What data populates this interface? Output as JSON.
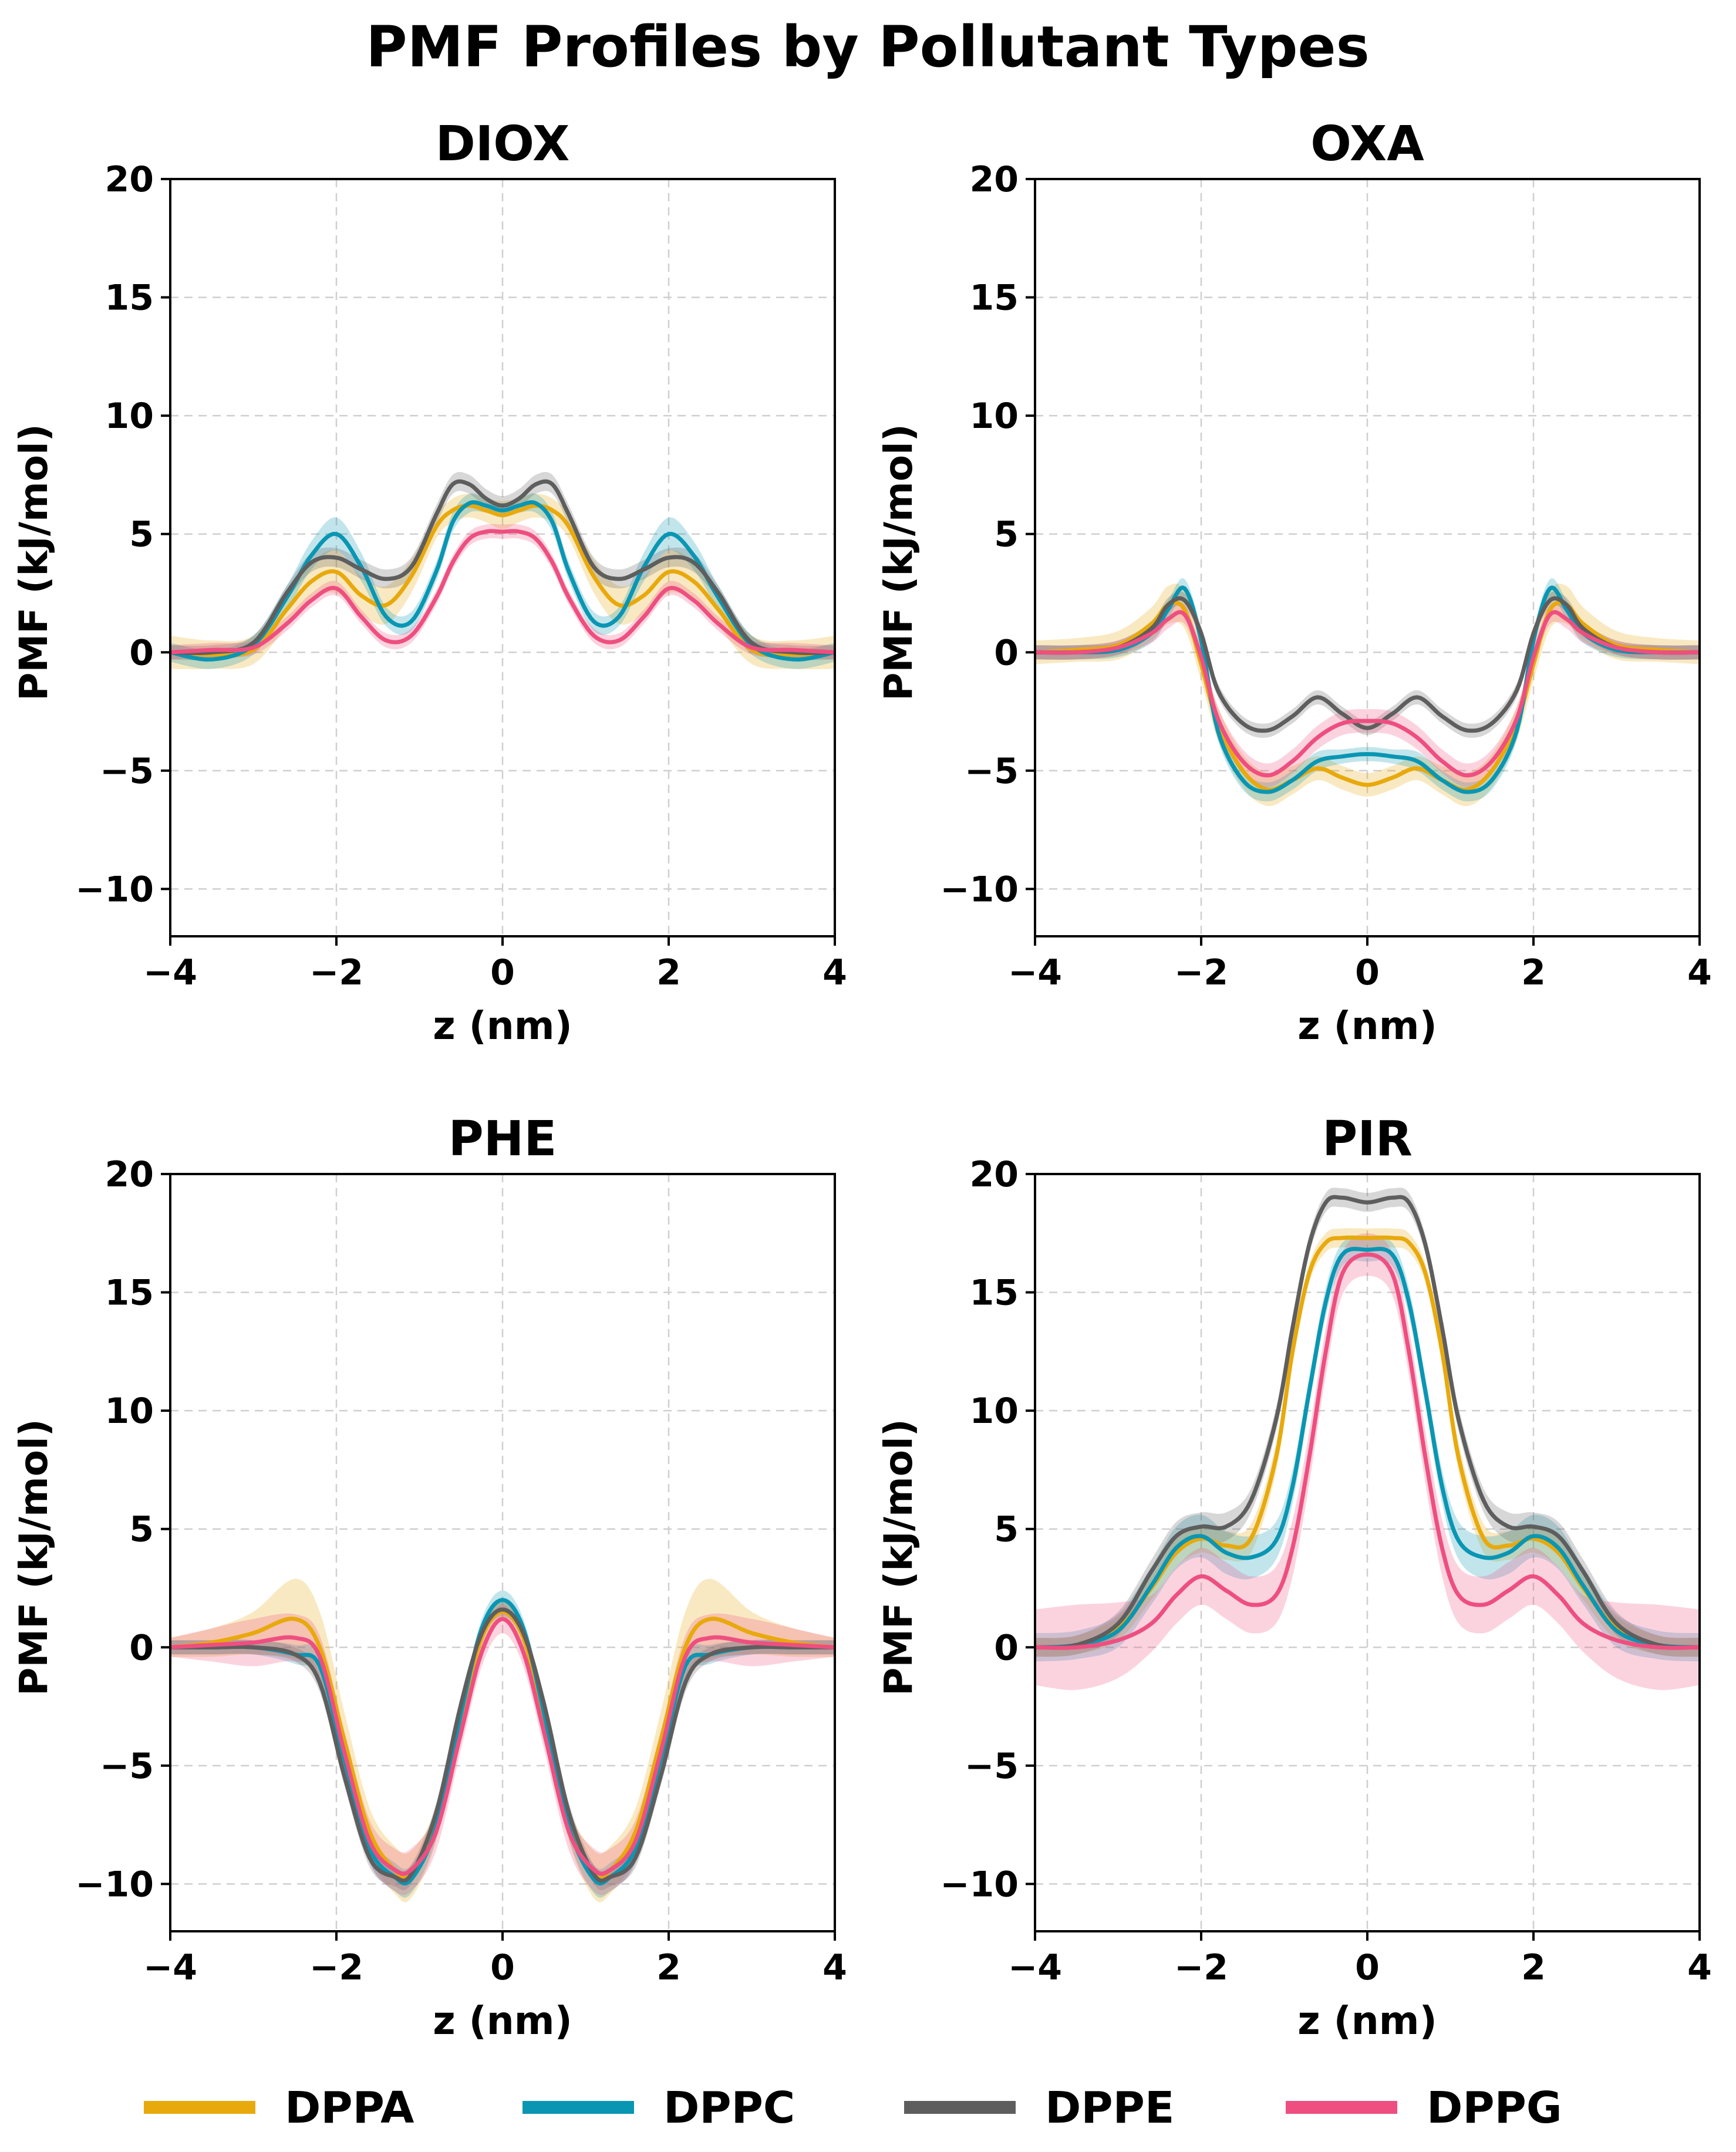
{
  "title": "PMF Profiles by Pollutant Types",
  "legend": [
    {
      "label": "DPPA",
      "color": "#E8A90C"
    },
    {
      "label": "DPPC",
      "color": "#0A96B3"
    },
    {
      "label": "DPPE",
      "color": "#5E5E5E"
    },
    {
      "label": "DPPG",
      "color": "#EE4F80"
    }
  ],
  "chart_data": [
    {
      "type": "line",
      "title": "DIOX",
      "xlabel": "z (nm)",
      "ylabel": "PMF (kJ/mol)",
      "xlim": [
        -4,
        4
      ],
      "ylim": [
        -12,
        20
      ],
      "xticks": [
        -4,
        -2,
        0,
        2,
        4
      ],
      "yticks": [
        -10,
        -5,
        0,
        5,
        10,
        15,
        20
      ],
      "x": [
        -4,
        -3.5,
        -3,
        -2.6,
        -2.3,
        -2.0,
        -1.7,
        -1.4,
        -1.1,
        -0.8,
        -0.6,
        -0.4,
        -0.2,
        0,
        0.2,
        0.4,
        0.6,
        0.8,
        1.1,
        1.4,
        1.7,
        2.0,
        2.3,
        2.6,
        3,
        3.5,
        4
      ],
      "series": [
        {
          "name": "DPPA",
          "values": [
            0,
            -0.1,
            0.1,
            1.8,
            3.0,
            3.4,
            2.4,
            2.0,
            3.2,
            5.3,
            6.0,
            6.2,
            6.0,
            5.8,
            6.0,
            6.2,
            6.0,
            5.3,
            3.2,
            2.0,
            2.4,
            3.4,
            3.0,
            1.8,
            0.1,
            -0.1,
            0
          ],
          "band": [
            0.7,
            0.6,
            0.6,
            0.7,
            0.8,
            0.9,
            0.8,
            0.8,
            0.7,
            0.5,
            0.5,
            0.5,
            0.5,
            0.6,
            0.5,
            0.5,
            0.5,
            0.5,
            0.7,
            0.8,
            0.8,
            0.9,
            0.8,
            0.7,
            0.6,
            0.6,
            0.7
          ]
        },
        {
          "name": "DPPC",
          "values": [
            0,
            -0.3,
            0.3,
            2.3,
            4.1,
            5.0,
            3.6,
            1.5,
            1.3,
            3.4,
            5.5,
            6.3,
            6.2,
            6.0,
            6.2,
            6.3,
            5.5,
            3.4,
            1.3,
            1.5,
            3.6,
            5.0,
            4.1,
            2.3,
            0.3,
            -0.3,
            0
          ],
          "band": [
            0.4,
            0.4,
            0.4,
            0.5,
            0.6,
            0.7,
            0.6,
            0.4,
            0.4,
            0.4,
            0.4,
            0.4,
            0.3,
            0.3,
            0.3,
            0.4,
            0.4,
            0.4,
            0.4,
            0.4,
            0.6,
            0.7,
            0.6,
            0.5,
            0.4,
            0.4,
            0.4
          ]
        },
        {
          "name": "DPPE",
          "values": [
            0,
            0,
            0.4,
            2.5,
            3.8,
            4.0,
            3.5,
            3.1,
            3.6,
            5.8,
            7.1,
            7.1,
            6.5,
            6.2,
            6.5,
            7.1,
            7.1,
            5.8,
            3.6,
            3.1,
            3.5,
            4.0,
            3.8,
            2.5,
            0.4,
            0,
            0
          ],
          "band": [
            0.3,
            0.3,
            0.3,
            0.3,
            0.4,
            0.4,
            0.4,
            0.4,
            0.4,
            0.4,
            0.4,
            0.4,
            0.4,
            0.4,
            0.4,
            0.4,
            0.4,
            0.4,
            0.4,
            0.4,
            0.4,
            0.4,
            0.4,
            0.3,
            0.3,
            0.3,
            0.3
          ]
        },
        {
          "name": "DPPG",
          "values": [
            0,
            0.1,
            0.2,
            1.2,
            2.2,
            2.7,
            1.5,
            0.5,
            0.7,
            2.3,
            3.8,
            4.8,
            5.1,
            5.1,
            5.1,
            4.8,
            3.8,
            2.3,
            0.7,
            0.5,
            1.5,
            2.7,
            2.2,
            1.2,
            0.2,
            0.1,
            0
          ],
          "band": [
            0.3,
            0.3,
            0.3,
            0.3,
            0.3,
            0.3,
            0.3,
            0.3,
            0.3,
            0.3,
            0.3,
            0.3,
            0.3,
            0.3,
            0.3,
            0.3,
            0.3,
            0.3,
            0.3,
            0.3,
            0.3,
            0.3,
            0.3,
            0.3,
            0.3,
            0.3,
            0.3
          ]
        }
      ]
    },
    {
      "type": "line",
      "title": "OXA",
      "xlabel": "z (nm)",
      "ylabel": "PMF (kJ/mol)",
      "xlim": [
        -4,
        4
      ],
      "ylim": [
        -12,
        20
      ],
      "xticks": [
        -4,
        -2,
        0,
        2,
        4
      ],
      "yticks": [
        -10,
        -5,
        0,
        5,
        10,
        15,
        20
      ],
      "x": [
        -4,
        -3.5,
        -3,
        -2.6,
        -2.4,
        -2.2,
        -2.0,
        -1.8,
        -1.5,
        -1.2,
        -0.9,
        -0.6,
        -0.3,
        0,
        0.3,
        0.6,
        0.9,
        1.2,
        1.5,
        1.8,
        2.0,
        2.2,
        2.4,
        2.6,
        3,
        3.5,
        4
      ],
      "series": [
        {
          "name": "DPPA",
          "values": [
            0,
            0.1,
            0.3,
            1.2,
            2.0,
            1.8,
            -0.5,
            -3.0,
            -5.0,
            -5.8,
            -5.4,
            -4.9,
            -5.3,
            -5.6,
            -5.3,
            -4.9,
            -5.4,
            -5.8,
            -5.0,
            -3.0,
            -0.5,
            1.8,
            2.0,
            1.2,
            0.3,
            0.1,
            0
          ],
          "band": [
            0.5,
            0.5,
            0.6,
            0.7,
            0.8,
            0.8,
            0.7,
            0.7,
            0.7,
            0.7,
            0.6,
            0.5,
            0.5,
            0.5,
            0.5,
            0.5,
            0.6,
            0.7,
            0.7,
            0.7,
            0.7,
            0.8,
            0.8,
            0.7,
            0.6,
            0.5,
            0.5
          ]
        },
        {
          "name": "DPPC",
          "values": [
            0,
            0,
            0.1,
            0.8,
            1.8,
            2.7,
            0.5,
            -3.3,
            -5.4,
            -5.9,
            -5.4,
            -4.6,
            -4.4,
            -4.3,
            -4.4,
            -4.6,
            -5.4,
            -5.9,
            -5.4,
            -3.3,
            0.5,
            2.7,
            1.8,
            0.8,
            0.1,
            0,
            0
          ],
          "band": [
            0.3,
            0.3,
            0.3,
            0.4,
            0.4,
            0.4,
            0.4,
            0.4,
            0.4,
            0.4,
            0.4,
            0.4,
            0.3,
            0.3,
            0.3,
            0.4,
            0.4,
            0.4,
            0.4,
            0.4,
            0.4,
            0.4,
            0.4,
            0.4,
            0.3,
            0.3,
            0.3
          ]
        },
        {
          "name": "DPPE",
          "values": [
            0,
            0,
            0.2,
            1.0,
            2.0,
            2.2,
            0.8,
            -1.6,
            -3.0,
            -3.3,
            -2.7,
            -1.9,
            -2.6,
            -3.2,
            -2.6,
            -1.9,
            -2.7,
            -3.3,
            -3.0,
            -1.6,
            0.8,
            2.2,
            2.0,
            1.0,
            0.2,
            0,
            0
          ],
          "band": [
            0.3,
            0.3,
            0.3,
            0.3,
            0.3,
            0.3,
            0.3,
            0.3,
            0.3,
            0.3,
            0.3,
            0.3,
            0.3,
            0.3,
            0.3,
            0.3,
            0.3,
            0.3,
            0.3,
            0.3,
            0.3,
            0.3,
            0.3,
            0.3,
            0.3,
            0.3,
            0.3
          ]
        },
        {
          "name": "DPPG",
          "values": [
            0,
            0,
            0.2,
            0.8,
            1.4,
            1.6,
            -0.2,
            -2.8,
            -4.6,
            -5.2,
            -4.6,
            -3.6,
            -3.0,
            -2.9,
            -3.0,
            -3.6,
            -4.6,
            -5.2,
            -4.6,
            -2.8,
            -0.2,
            1.6,
            1.4,
            0.8,
            0.2,
            0,
            0
          ],
          "band": [
            0.3,
            0.3,
            0.3,
            0.4,
            0.4,
            0.4,
            0.4,
            0.5,
            0.5,
            0.5,
            0.5,
            0.5,
            0.5,
            0.5,
            0.5,
            0.5,
            0.5,
            0.5,
            0.5,
            0.5,
            0.4,
            0.4,
            0.4,
            0.4,
            0.3,
            0.3,
            0.3
          ]
        }
      ]
    },
    {
      "type": "line",
      "title": "PHE",
      "xlabel": "z (nm)",
      "ylabel": "PMF (kJ/mol)",
      "xlim": [
        -4,
        4
      ],
      "ylim": [
        -12,
        20
      ],
      "xticks": [
        -4,
        -2,
        0,
        2,
        4
      ],
      "yticks": [
        -10,
        -5,
        0,
        5,
        10,
        15,
        20
      ],
      "x": [
        -4,
        -3.5,
        -3,
        -2.5,
        -2.2,
        -1.9,
        -1.6,
        -1.3,
        -1.1,
        -0.8,
        -0.5,
        -0.25,
        0,
        0.25,
        0.5,
        0.8,
        1.1,
        1.3,
        1.6,
        1.9,
        2.2,
        2.5,
        3,
        3.5,
        4
      ],
      "series": [
        {
          "name": "DPPA",
          "values": [
            0,
            0.2,
            0.6,
            1.2,
            0,
            -4.0,
            -7.8,
            -9.4,
            -9.6,
            -7.5,
            -3.0,
            0.4,
            1.5,
            0.4,
            -3.0,
            -7.5,
            -9.6,
            -9.4,
            -7.8,
            -4.0,
            0,
            1.2,
            0.6,
            0.2,
            0
          ],
          "band": [
            0.4,
            0.6,
            0.9,
            1.7,
            1.5,
            1.2,
            1.0,
            1.0,
            1.0,
            0.7,
            0.5,
            0.4,
            0.4,
            0.4,
            0.5,
            0.7,
            1.0,
            1.0,
            1.0,
            1.2,
            1.5,
            1.7,
            0.9,
            0.6,
            0.4
          ]
        },
        {
          "name": "DPPC",
          "values": [
            0,
            0,
            0,
            -0.3,
            -0.8,
            -4.8,
            -8.5,
            -9.7,
            -9.8,
            -7.6,
            -2.8,
            0.8,
            2.0,
            0.8,
            -2.8,
            -7.6,
            -9.8,
            -9.7,
            -8.5,
            -4.8,
            -0.8,
            -0.3,
            0,
            0,
            0
          ],
          "band": [
            0.3,
            0.3,
            0.3,
            0.4,
            0.5,
            0.5,
            0.6,
            0.6,
            0.6,
            0.5,
            0.4,
            0.4,
            0.4,
            0.4,
            0.4,
            0.5,
            0.6,
            0.6,
            0.6,
            0.5,
            0.5,
            0.4,
            0.3,
            0.3,
            0.3
          ]
        },
        {
          "name": "DPPE",
          "values": [
            0,
            0,
            0,
            -0.3,
            -1.5,
            -5.5,
            -8.9,
            -9.7,
            -9.6,
            -7.0,
            -2.4,
            0.6,
            1.6,
            0.6,
            -2.4,
            -7.0,
            -9.6,
            -9.7,
            -8.9,
            -5.5,
            -1.5,
            -0.3,
            0,
            0,
            0
          ],
          "band": [
            0.3,
            0.3,
            0.3,
            0.3,
            0.4,
            0.4,
            0.4,
            0.4,
            0.4,
            0.4,
            0.3,
            0.3,
            0.3,
            0.3,
            0.3,
            0.4,
            0.4,
            0.4,
            0.4,
            0.4,
            0.4,
            0.3,
            0.3,
            0.3,
            0.3
          ]
        },
        {
          "name": "DPPG",
          "values": [
            0,
            0.1,
            0.2,
            0.4,
            -0.4,
            -4.5,
            -8.2,
            -9.4,
            -9.4,
            -7.8,
            -3.6,
            -0.2,
            1.2,
            -0.2,
            -3.6,
            -7.8,
            -9.4,
            -9.4,
            -8.2,
            -4.5,
            -0.4,
            0.4,
            0.2,
            0.1,
            0
          ],
          "band": [
            0.4,
            0.7,
            1.0,
            1.0,
            0.9,
            0.9,
            0.9,
            0.9,
            0.9,
            0.8,
            0.7,
            0.6,
            0.6,
            0.6,
            0.7,
            0.8,
            0.9,
            0.9,
            0.9,
            0.9,
            0.9,
            1.0,
            1.0,
            0.7,
            0.4
          ]
        }
      ]
    },
    {
      "type": "line",
      "title": "PIR",
      "xlabel": "z (nm)",
      "ylabel": "PMF (kJ/mol)",
      "xlim": [
        -4,
        4
      ],
      "ylim": [
        -12,
        20
      ],
      "xticks": [
        -4,
        -2,
        0,
        2,
        4
      ],
      "yticks": [
        -10,
        -5,
        0,
        5,
        10,
        15,
        20
      ],
      "x": [
        -4,
        -3.5,
        -3,
        -2.6,
        -2.3,
        -2.0,
        -1.7,
        -1.4,
        -1.1,
        -0.9,
        -0.7,
        -0.5,
        -0.3,
        0,
        0.3,
        0.5,
        0.7,
        0.9,
        1.1,
        1.4,
        1.7,
        2.0,
        2.3,
        2.6,
        3,
        3.5,
        4
      ],
      "series": [
        {
          "name": "DPPA",
          "values": [
            0,
            0.1,
            0.8,
            2.5,
            4.0,
            4.6,
            4.3,
            4.6,
            8.0,
            12.5,
            15.8,
            17.1,
            17.3,
            17.3,
            17.3,
            17.1,
            15.8,
            12.5,
            8.0,
            4.6,
            4.3,
            4.6,
            4.0,
            2.5,
            0.8,
            0.1,
            0
          ],
          "band": [
            0.4,
            0.4,
            0.5,
            0.5,
            0.6,
            0.6,
            0.6,
            0.6,
            0.6,
            0.5,
            0.4,
            0.4,
            0.4,
            0.4,
            0.4,
            0.4,
            0.4,
            0.5,
            0.6,
            0.6,
            0.6,
            0.6,
            0.6,
            0.5,
            0.5,
            0.4,
            0.4
          ]
        },
        {
          "name": "DPPC",
          "values": [
            0,
            0.1,
            0.7,
            2.6,
            4.2,
            4.7,
            4.0,
            3.8,
            4.5,
            6.8,
            10.8,
            14.6,
            16.6,
            16.8,
            16.6,
            14.6,
            10.8,
            6.8,
            4.5,
            3.8,
            4.0,
            4.7,
            4.2,
            2.6,
            0.7,
            0.1,
            0
          ],
          "band": [
            0.6,
            0.6,
            0.7,
            0.8,
            0.9,
            0.9,
            0.9,
            0.9,
            0.8,
            0.7,
            0.6,
            0.6,
            0.5,
            0.5,
            0.5,
            0.6,
            0.6,
            0.7,
            0.8,
            0.9,
            0.9,
            0.9,
            0.9,
            0.8,
            0.7,
            0.6,
            0.6
          ]
        },
        {
          "name": "DPPE",
          "values": [
            0,
            0.1,
            1.0,
            3.2,
            4.7,
            5.1,
            5.1,
            6.2,
            9.6,
            13.5,
            17.0,
            18.8,
            19.0,
            18.8,
            19.0,
            18.8,
            17.0,
            13.5,
            9.6,
            6.2,
            5.1,
            5.1,
            4.7,
            3.2,
            1.0,
            0.1,
            0
          ],
          "band": [
            0.4,
            0.4,
            0.5,
            0.5,
            0.6,
            0.6,
            0.6,
            0.5,
            0.5,
            0.5,
            0.4,
            0.4,
            0.4,
            0.4,
            0.4,
            0.4,
            0.4,
            0.5,
            0.5,
            0.5,
            0.6,
            0.6,
            0.6,
            0.5,
            0.5,
            0.4,
            0.4
          ]
        },
        {
          "name": "DPPG",
          "values": [
            0,
            0,
            0.3,
            1.0,
            2.2,
            3.0,
            2.4,
            1.8,
            2.2,
            4.2,
            8.0,
            12.5,
            15.8,
            16.6,
            15.8,
            12.5,
            8.0,
            4.2,
            2.2,
            1.8,
            2.4,
            3.0,
            2.2,
            1.0,
            0.3,
            0,
            0
          ],
          "band": [
            1.6,
            1.8,
            1.6,
            1.2,
            1.2,
            1.2,
            1.2,
            1.2,
            1.2,
            1.2,
            1.1,
            1.0,
            0.9,
            0.9,
            0.9,
            1.0,
            1.1,
            1.2,
            1.2,
            1.2,
            1.2,
            1.2,
            1.2,
            1.2,
            1.6,
            1.8,
            1.6
          ]
        }
      ]
    }
  ]
}
